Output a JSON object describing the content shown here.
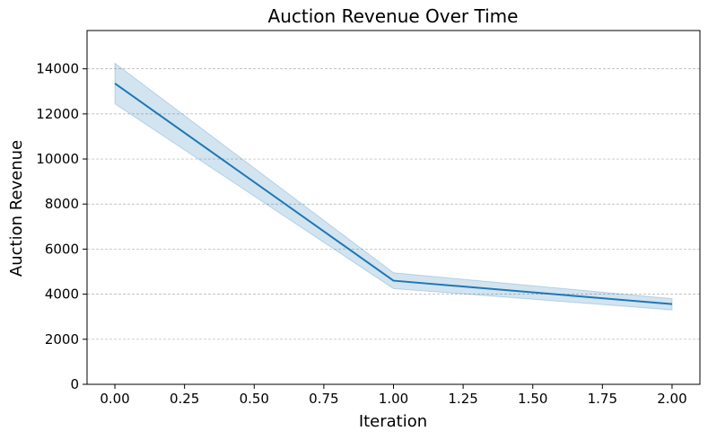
{
  "chart_data": {
    "type": "line",
    "title": "Auction Revenue Over Time",
    "xlabel": "Iteration",
    "ylabel": "Auction Revenue",
    "x": [
      0,
      1,
      2
    ],
    "series": [
      {
        "values": [
          13350,
          4600,
          3560
        ],
        "ci_lower": [
          12450,
          4250,
          3300
        ],
        "ci_upper": [
          14250,
          4950,
          3800
        ],
        "line_color": "#1f77b4",
        "band_color": "#1f77b4"
      }
    ],
    "xlim": [
      -0.1,
      2.1
    ],
    "ylim": [
      0,
      15700
    ],
    "xticks": [
      0.0,
      0.25,
      0.5,
      0.75,
      1.0,
      1.25,
      1.5,
      1.75,
      2.0
    ],
    "xtick_labels": [
      "0.00",
      "0.25",
      "0.50",
      "0.75",
      "1.00",
      "1.25",
      "1.50",
      "1.75",
      "2.00"
    ],
    "yticks": [
      0,
      2000,
      4000,
      6000,
      8000,
      10000,
      12000,
      14000
    ],
    "ytick_labels": [
      "0",
      "2000",
      "4000",
      "6000",
      "8000",
      "10000",
      "12000",
      "14000"
    ],
    "grid": {
      "axis": "y",
      "style": "dashed"
    },
    "legend": "none"
  }
}
